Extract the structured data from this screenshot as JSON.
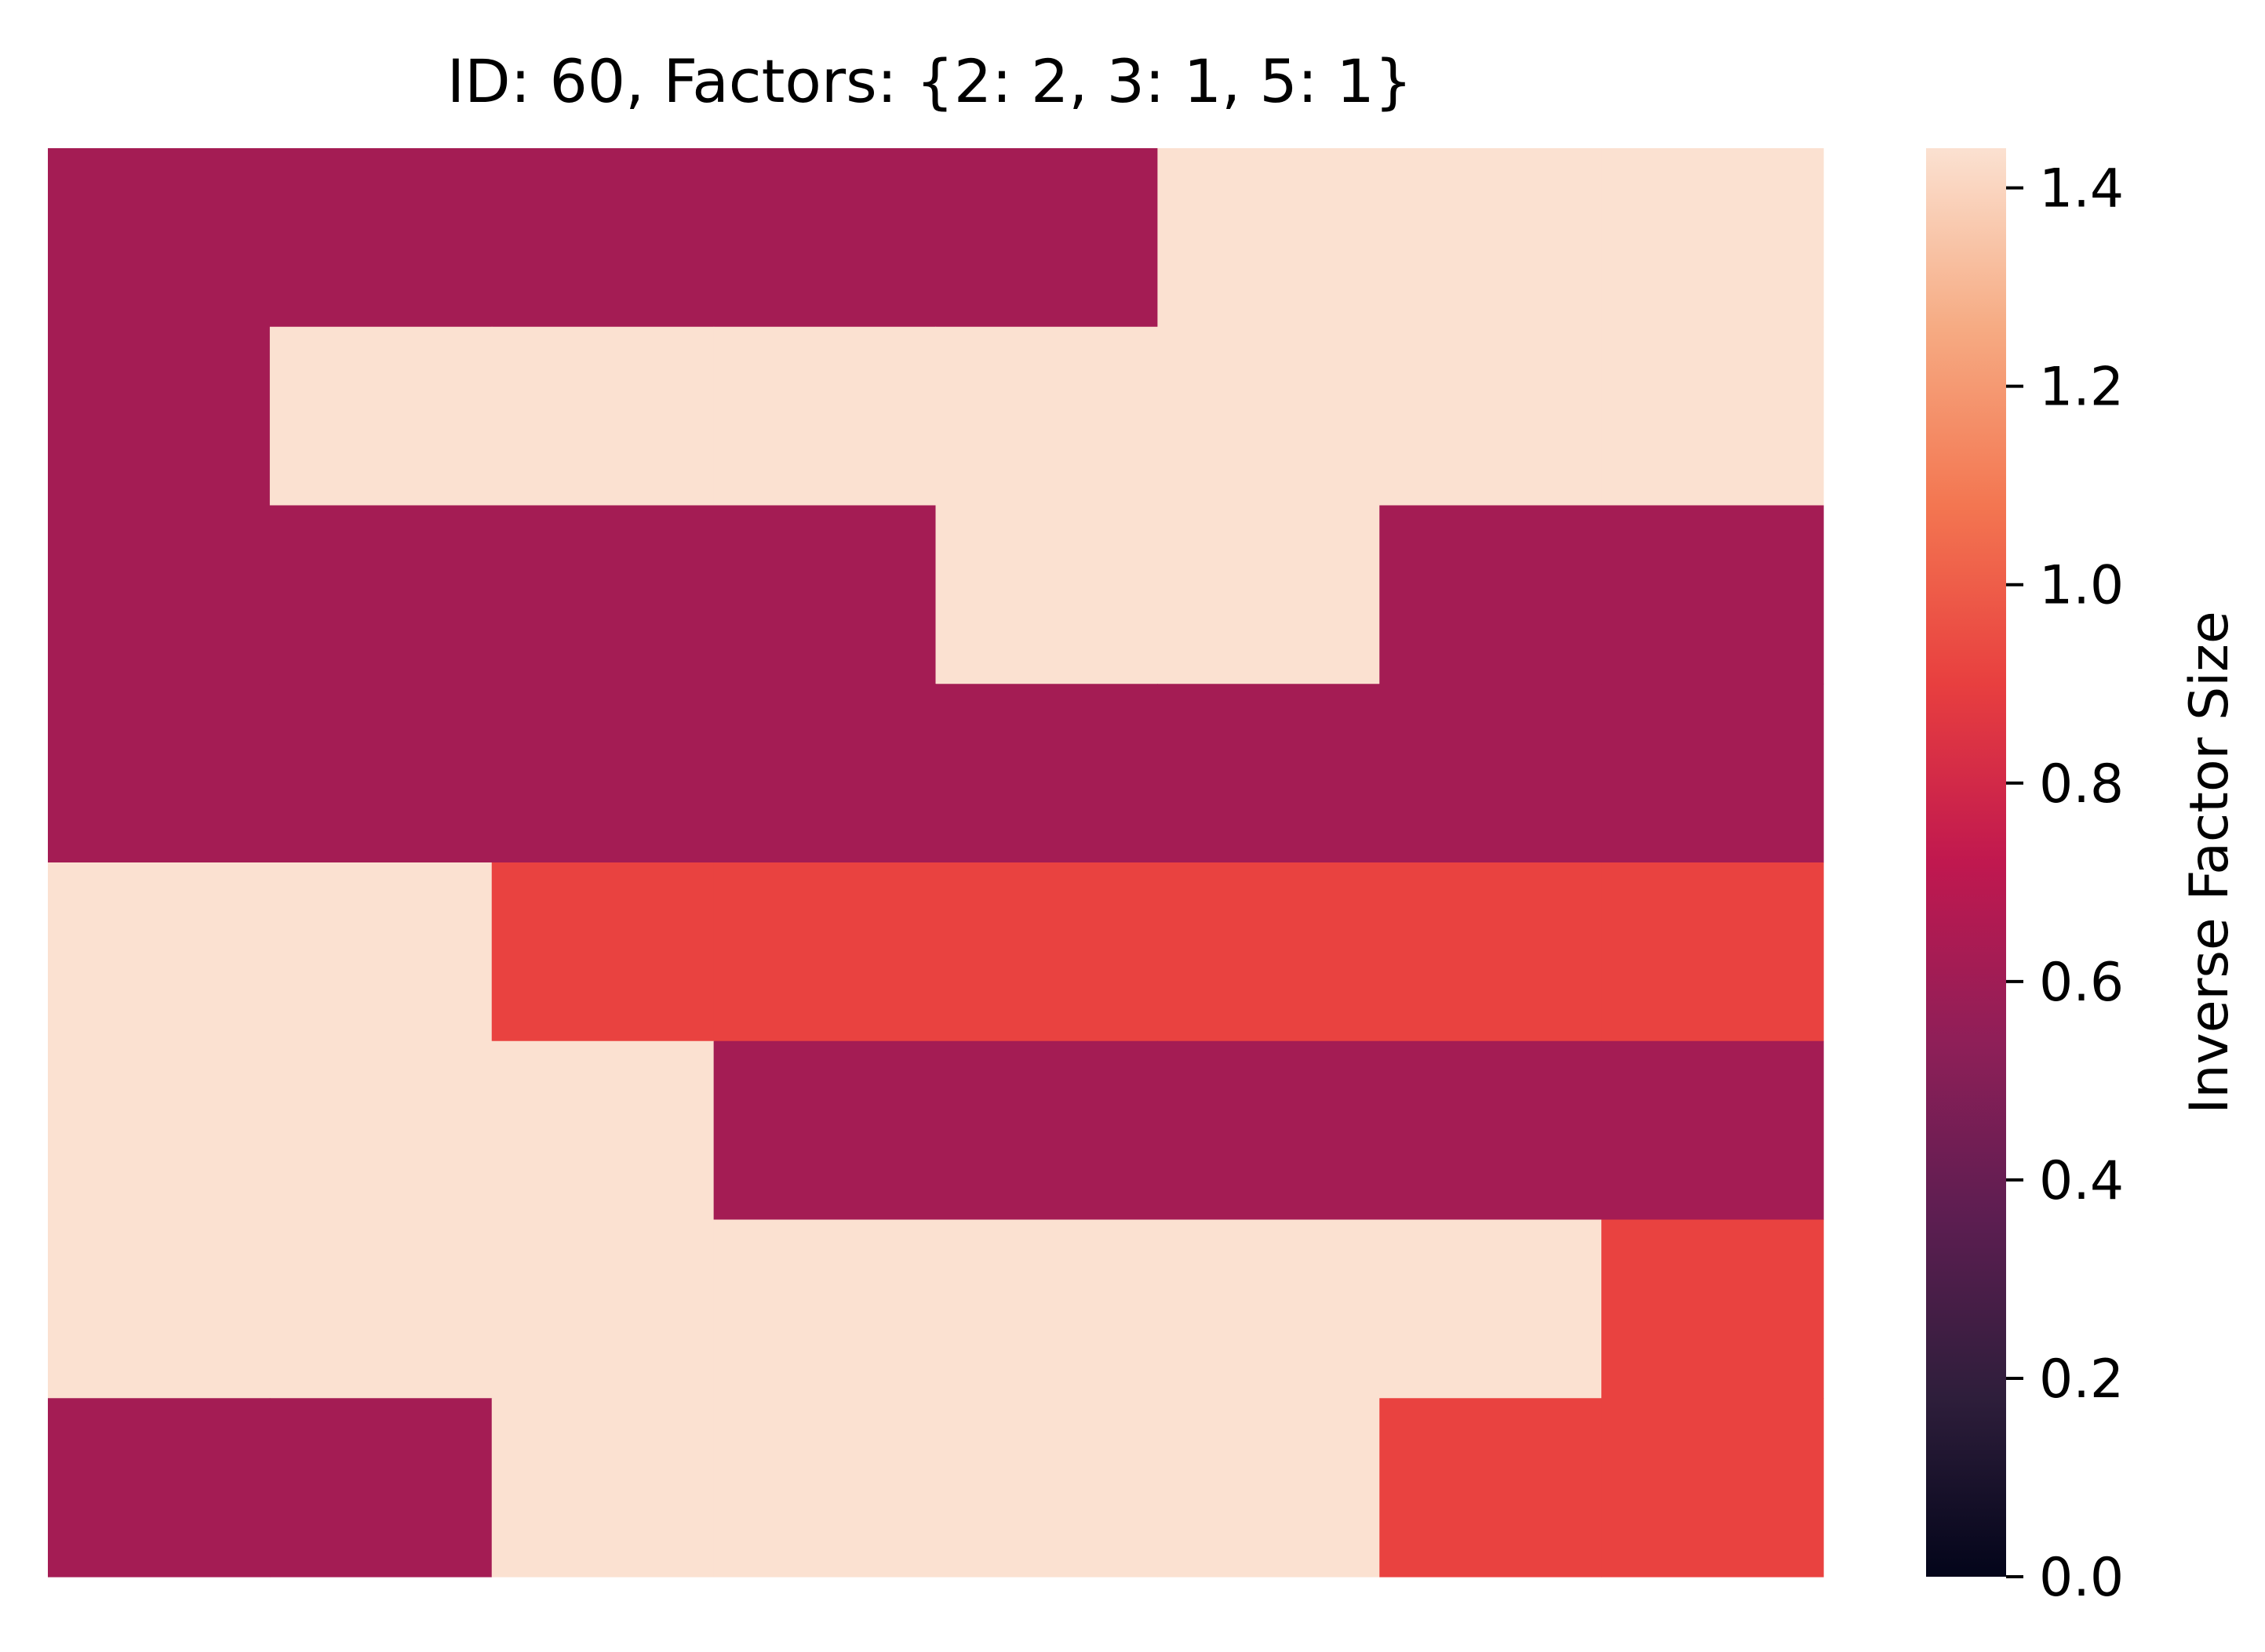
{
  "chart_data": {
    "type": "heatmap",
    "title": "ID: 60, Factors: {2: 2, 3: 1, 5: 1}",
    "rows": 8,
    "cols": 8,
    "values": [
      [
        0.618,
        0.618,
        0.618,
        0.618,
        0.618,
        1.44,
        1.44,
        1.44
      ],
      [
        0.618,
        1.44,
        1.44,
        1.44,
        1.44,
        1.44,
        1.44,
        1.44
      ],
      [
        0.618,
        0.618,
        0.618,
        0.618,
        1.44,
        1.44,
        0.618,
        0.618
      ],
      [
        0.618,
        0.618,
        0.618,
        0.618,
        0.618,
        0.618,
        0.618,
        0.618
      ],
      [
        1.44,
        1.44,
        0.91,
        0.91,
        0.91,
        0.91,
        0.91,
        0.91
      ],
      [
        1.44,
        1.44,
        1.44,
        0.618,
        0.618,
        0.618,
        0.618,
        0.618
      ],
      [
        1.44,
        1.44,
        1.44,
        1.44,
        1.44,
        1.44,
        1.44,
        0.91
      ],
      [
        0.618,
        0.618,
        1.44,
        1.44,
        1.44,
        1.44,
        0.91,
        0.91
      ]
    ],
    "colormap": "rocket",
    "vmin": 0.0,
    "vmax": 1.44,
    "colorbar": {
      "label": "Inverse Factor Size",
      "ticks": [
        0.0,
        0.2,
        0.4,
        0.6,
        0.8,
        1.0,
        1.2,
        1.4
      ],
      "tick_labels": [
        "0.0",
        "0.2",
        "0.4",
        "0.6",
        "0.8",
        "1.0",
        "1.2",
        "1.4"
      ]
    },
    "xlabel": "",
    "ylabel": "",
    "grid": false,
    "show_axis_ticks": false
  },
  "colors": {
    "rocket_stops": [
      "#03051a",
      "#2e1e3b",
      "#5c1e51",
      "#8f1f58",
      "#c0184f",
      "#e83f3f",
      "#f37651",
      "#f6ab83",
      "#fbe1d1"
    ],
    "background": "#ffffff",
    "text": "#000000"
  }
}
